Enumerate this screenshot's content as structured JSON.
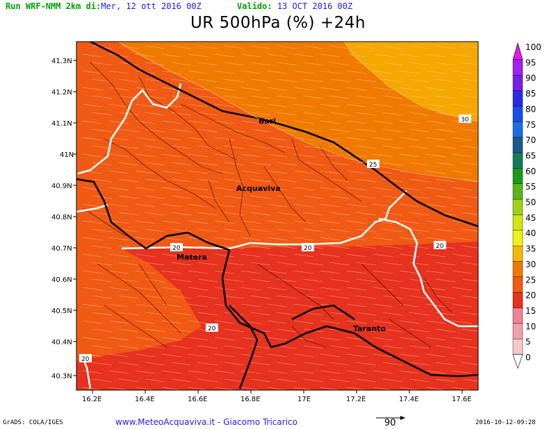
{
  "header": {
    "run_label": "Run WRF-NMM 2km di:",
    "run_date": "Mer, 12 ott 2016 00Z",
    "valid_label": "Valido:",
    "valid_date": "13 OCT 2016 00Z"
  },
  "title": "UR 500hPa (%) +24h",
  "map": {
    "lat_labels": [
      "41.3N",
      "41.2N",
      "41.1N",
      "41N",
      "40.9N",
      "40.8N",
      "40.7N",
      "40.6N",
      "40.5N",
      "40.4N",
      "40.3N"
    ],
    "lon_labels": [
      "16.2E",
      "16.4E",
      "16.6E",
      "16.8E",
      "17E",
      "17.2E",
      "17.4E",
      "17.6E"
    ],
    "cities": [
      "Bari",
      "Acquaviva",
      "Matera",
      "Taranto"
    ],
    "contour_labels": [
      "30",
      "25",
      "20",
      "20",
      "20",
      "20",
      "20"
    ]
  },
  "colorbar": {
    "levels": [
      "100",
      "95",
      "90",
      "85",
      "80",
      "75",
      "70",
      "65",
      "60",
      "55",
      "50",
      "45",
      "40",
      "35",
      "30",
      "25",
      "20",
      "15",
      "10",
      "5",
      "0"
    ],
    "colors": [
      "#e619e6",
      "#a020f0",
      "#7a1ee6",
      "#2a2ae6",
      "#1a4ee6",
      "#1a6ee6",
      "#1a5a8a",
      "#147a5a",
      "#1a9a1a",
      "#5ab41a",
      "#a0d214",
      "#d2e614",
      "#f0f014",
      "#f5b800",
      "#f07a00",
      "#f05a14",
      "#e6321e",
      "#f0829a",
      "#f0a0aa",
      "#f5c8c8"
    ]
  },
  "footer": {
    "grads": "GrADS: COLA/IGES",
    "site": "www.MeteoAcquaviva.it  -  Giacomo Tricarico",
    "vector_ref": "90",
    "timestamp": "2016-10-12-09:28"
  }
}
